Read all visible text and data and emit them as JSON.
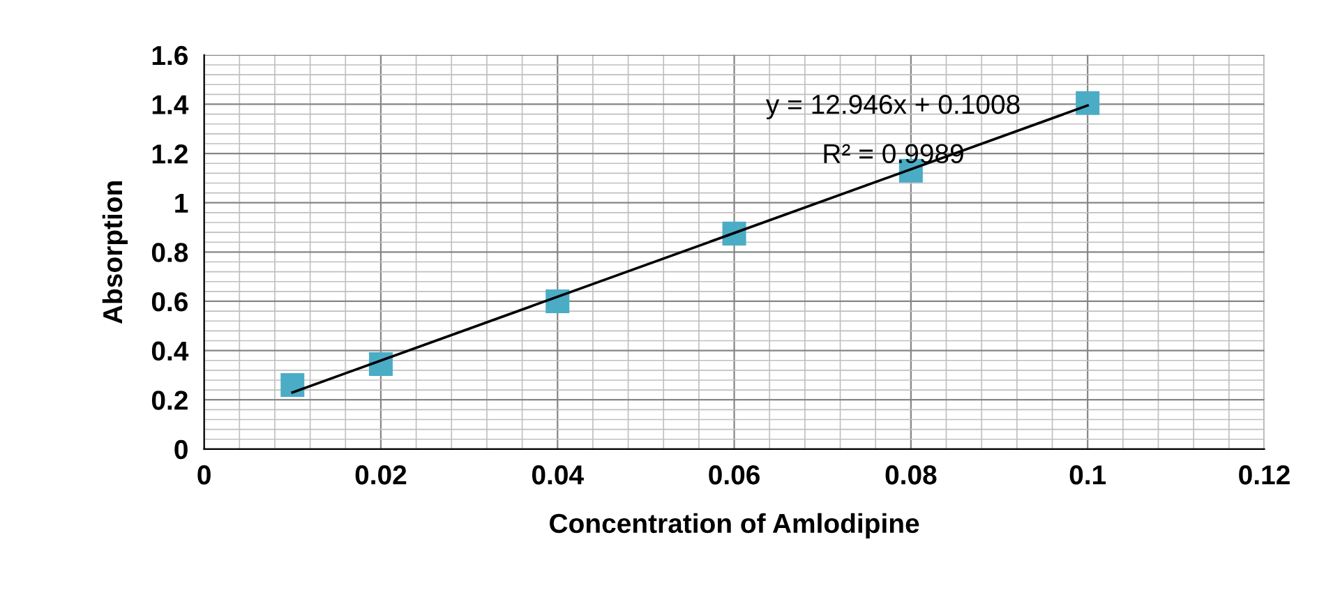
{
  "chart_data": {
    "type": "scatter",
    "xlabel": "Concentration of Amlodipine",
    "ylabel": "Absorption",
    "xlim": [
      0,
      0.12
    ],
    "xticks": [
      0,
      0.02,
      0.04,
      0.06,
      0.08,
      0.1,
      0.12
    ],
    "ylim": [
      0,
      1.6
    ],
    "yticks": [
      0,
      0.2,
      0.4,
      0.6,
      0.8,
      1,
      1.2,
      1.4,
      1.6
    ],
    "grid": true,
    "series": [
      {
        "marker": "square",
        "color": "#4bacc6",
        "x": [
          0.01,
          0.02,
          0.04,
          0.06,
          0.08,
          0.1
        ],
        "values": [
          0.26,
          0.345,
          0.6,
          0.875,
          1.13,
          1.405
        ]
      },
      {
        "type": "line",
        "color": "#000000",
        "x": [
          0.01,
          0.1
        ],
        "values": [
          0.23,
          1.395
        ]
      }
    ],
    "annotations": [
      "y = 12.946x + 0.1008",
      "R² = 0.9989"
    ]
  }
}
